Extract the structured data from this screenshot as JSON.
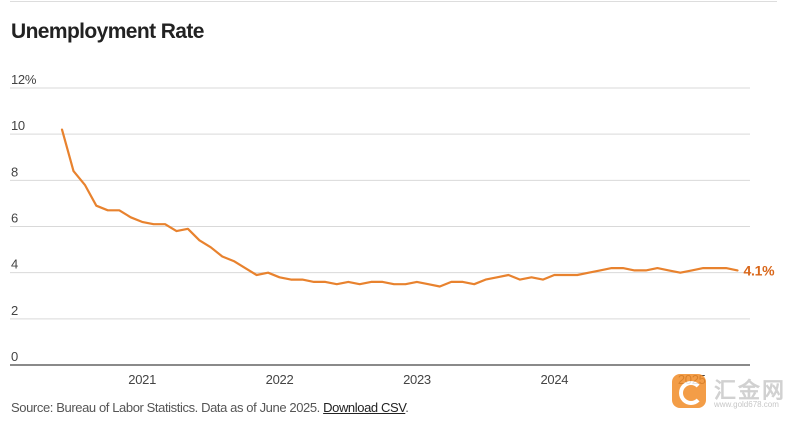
{
  "title": "Unemployment Rate",
  "source": {
    "text": "Source: Bureau of Labor Statistics. Data as of June 2025.",
    "link_label": "Download CSV",
    "trailing": "."
  },
  "watermark": {
    "brand": "汇金网",
    "url": "www.gold678.com",
    "icon": "gold678-logo-icon"
  },
  "colors": {
    "line": "#e8822e",
    "label": "#d9671a",
    "grid": "#d9d9d9",
    "baseline": "#444444"
  },
  "chart_data": {
    "type": "line",
    "title": "Unemployment Rate",
    "xlabel": "",
    "ylabel": "",
    "ylim": [
      0,
      12
    ],
    "xlim": [
      "2020-06",
      "2025-06"
    ],
    "y_ticks": [
      {
        "value": 0,
        "label": "0"
      },
      {
        "value": 2,
        "label": "2"
      },
      {
        "value": 4,
        "label": "4"
      },
      {
        "value": 6,
        "label": "6"
      },
      {
        "value": 8,
        "label": "8"
      },
      {
        "value": 10,
        "label": "10"
      },
      {
        "value": 12,
        "label": "12%"
      }
    ],
    "x_ticks": [
      {
        "date": "2021-01",
        "label": "2021"
      },
      {
        "date": "2022-01",
        "label": "2022"
      },
      {
        "date": "2023-01",
        "label": "2023"
      },
      {
        "date": "2024-01",
        "label": "2024"
      },
      {
        "date": "2025-01",
        "label": "2025"
      }
    ],
    "grid": true,
    "last_value_label": "4.1%",
    "series": [
      {
        "color": "#e8822e",
        "points": [
          [
            "2020-06",
            10.2
          ],
          [
            "2020-07",
            8.4
          ],
          [
            "2020-08",
            7.8
          ],
          [
            "2020-09",
            6.9
          ],
          [
            "2020-10",
            6.7
          ],
          [
            "2020-11",
            6.7
          ],
          [
            "2020-12",
            6.4
          ],
          [
            "2021-01",
            6.2
          ],
          [
            "2021-02",
            6.1
          ],
          [
            "2021-03",
            6.1
          ],
          [
            "2021-04",
            5.8
          ],
          [
            "2021-05",
            5.9
          ],
          [
            "2021-06",
            5.4
          ],
          [
            "2021-07",
            5.1
          ],
          [
            "2021-08",
            4.7
          ],
          [
            "2021-09",
            4.5
          ],
          [
            "2021-10",
            4.2
          ],
          [
            "2021-11",
            3.9
          ],
          [
            "2021-12",
            4.0
          ],
          [
            "2022-01",
            3.8
          ],
          [
            "2022-02",
            3.7
          ],
          [
            "2022-03",
            3.7
          ],
          [
            "2022-04",
            3.6
          ],
          [
            "2022-05",
            3.6
          ],
          [
            "2022-06",
            3.5
          ],
          [
            "2022-07",
            3.6
          ],
          [
            "2022-08",
            3.5
          ],
          [
            "2022-09",
            3.6
          ],
          [
            "2022-10",
            3.6
          ],
          [
            "2022-11",
            3.5
          ],
          [
            "2022-12",
            3.5
          ],
          [
            "2023-01",
            3.6
          ],
          [
            "2023-02",
            3.5
          ],
          [
            "2023-03",
            3.4
          ],
          [
            "2023-04",
            3.6
          ],
          [
            "2023-05",
            3.6
          ],
          [
            "2023-06",
            3.5
          ],
          [
            "2023-07",
            3.7
          ],
          [
            "2023-08",
            3.8
          ],
          [
            "2023-09",
            3.9
          ],
          [
            "2023-10",
            3.7
          ],
          [
            "2023-11",
            3.8
          ],
          [
            "2023-12",
            3.7
          ],
          [
            "2024-01",
            3.9
          ],
          [
            "2024-02",
            3.9
          ],
          [
            "2024-03",
            3.9
          ],
          [
            "2024-04",
            4.0
          ],
          [
            "2024-05",
            4.1
          ],
          [
            "2024-06",
            4.2
          ],
          [
            "2024-07",
            4.2
          ],
          [
            "2024-08",
            4.1
          ],
          [
            "2024-09",
            4.1
          ],
          [
            "2024-10",
            4.2
          ],
          [
            "2024-11",
            4.1
          ],
          [
            "2024-12",
            4.0
          ],
          [
            "2025-01",
            4.1
          ],
          [
            "2025-02",
            4.2
          ],
          [
            "2025-03",
            4.2
          ],
          [
            "2025-04",
            4.2
          ],
          [
            "2025-05",
            4.1
          ]
        ]
      }
    ]
  }
}
